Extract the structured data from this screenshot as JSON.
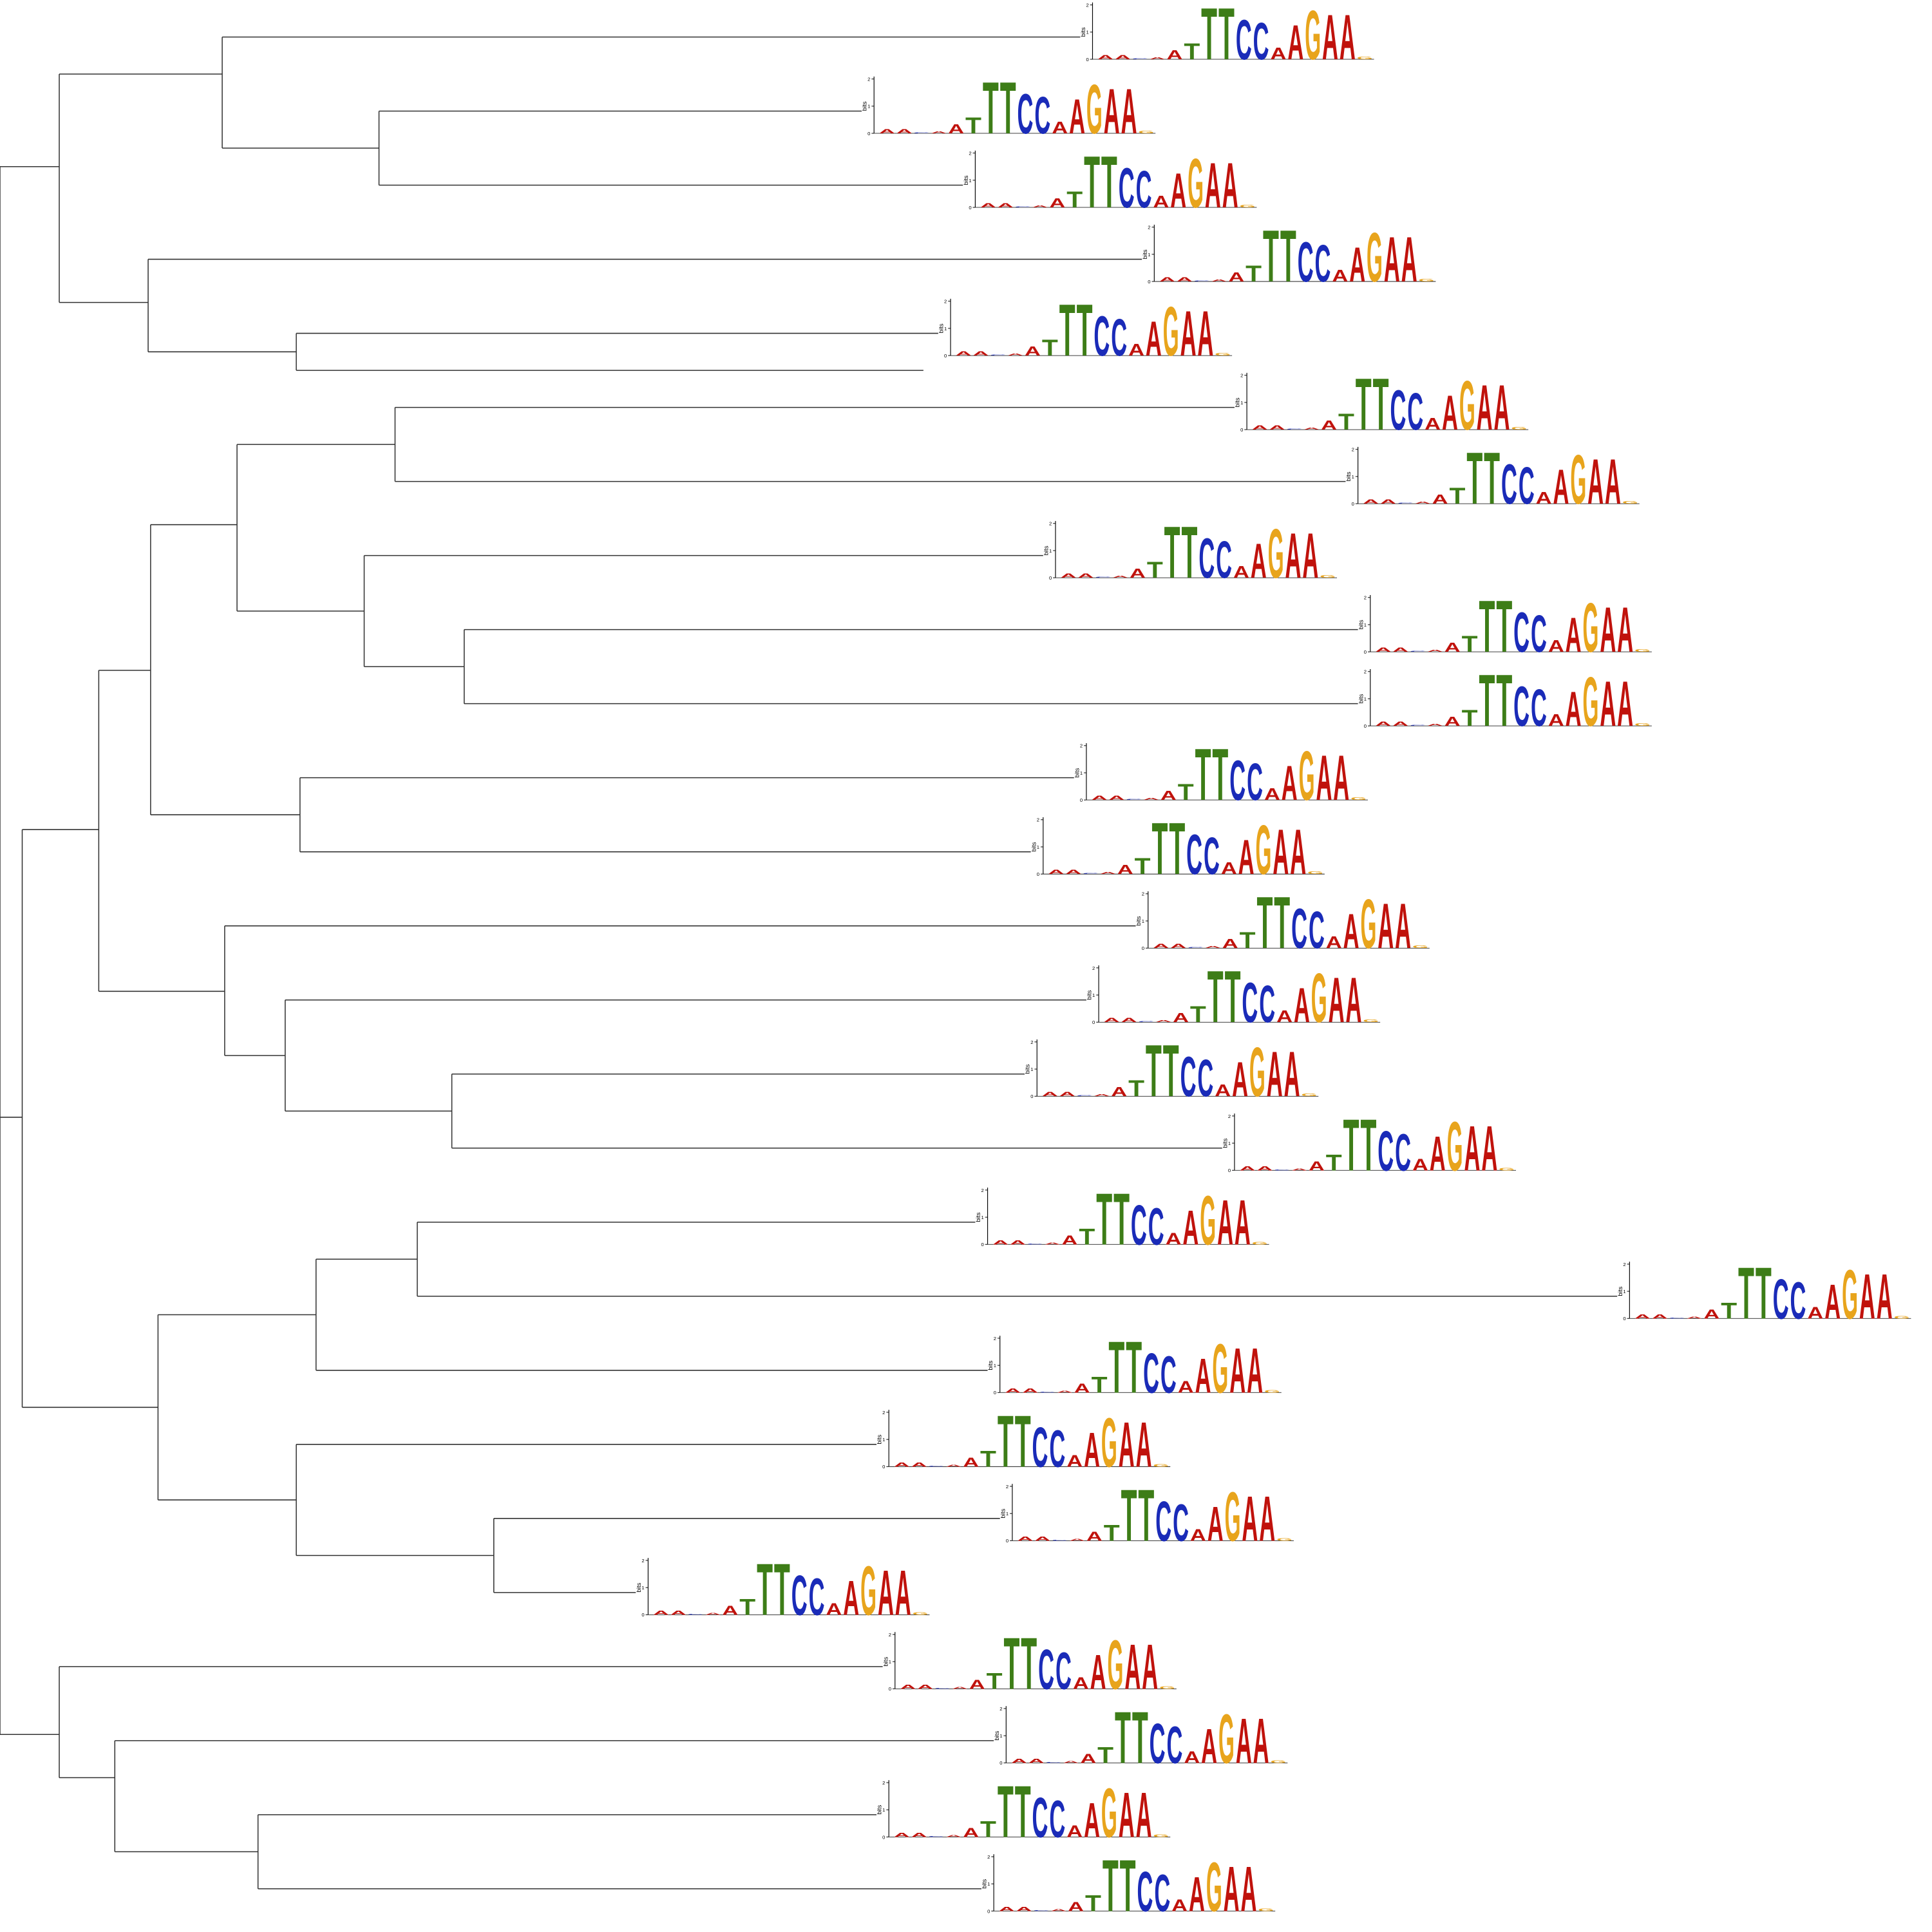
{
  "logo": {
    "y_label": "bits",
    "yticks": [
      0,
      1,
      2
    ],
    "columns": [
      {
        "letter": "A",
        "color": "#c0120c",
        "bits": 0.15
      },
      {
        "letter": "A",
        "color": "#c0120c",
        "bits": 0.15
      },
      {
        "letter": "C",
        "color": "#1a2bb8",
        "bits": 0.03
      },
      {
        "letter": "A",
        "color": "#c0120c",
        "bits": 0.08
      },
      {
        "letter": "A",
        "color": "#c0120c",
        "bits": 0.35
      },
      {
        "letter": "T",
        "color": "#3d7d17",
        "bits": 0.6
      },
      {
        "letter": "T",
        "color": "#3d7d17",
        "bits": 1.95
      },
      {
        "letter": "T",
        "color": "#3d7d17",
        "bits": 1.95
      },
      {
        "letter": "C",
        "color": "#1a2bb8",
        "bits": 1.5
      },
      {
        "letter": "C",
        "color": "#1a2bb8",
        "bits": 1.4
      },
      {
        "letter": "A",
        "color": "#c0120c",
        "bits": 0.45
      },
      {
        "letter": "A",
        "color": "#c0120c",
        "bits": 1.3
      },
      {
        "letter": "G",
        "color": "#e8a41c",
        "bits": 1.85
      },
      {
        "letter": "A",
        "color": "#c0120c",
        "bits": 1.7
      },
      {
        "letter": "A",
        "color": "#c0120c",
        "bits": 1.7
      },
      {
        "letter": "G",
        "color": "#e8a41c",
        "bits": 0.1
      }
    ]
  }
}
